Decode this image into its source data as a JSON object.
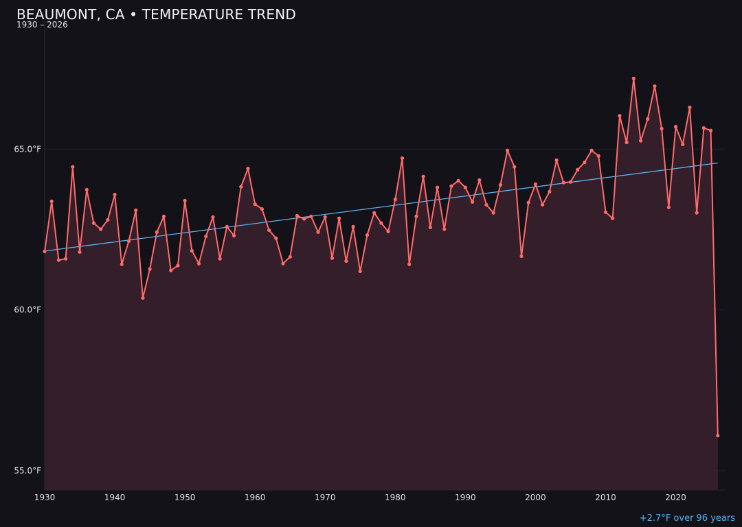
{
  "chart_data": {
    "type": "line",
    "title": "BEAUMONT, CA • TEMPERATURE TREND",
    "subtitle": "1930 – 2026",
    "annotation": "+2.7°F over 96 years",
    "xlim": [
      1930,
      2027
    ],
    "ylim": [
      54.4,
      69.0
    ],
    "x_ticks": [
      1930,
      1940,
      1950,
      1960,
      1970,
      1980,
      1990,
      2000,
      2010,
      2020
    ],
    "y_ticks": [
      55.0,
      60.0,
      65.0
    ],
    "y_tick_labels": [
      "55.0°F",
      "60.0°F",
      "65.0°F"
    ],
    "grid": "horizontal",
    "colors": {
      "background": "#131218",
      "line": "#ff6b6b",
      "area": "#36202a",
      "trend": "#5ab4ee"
    },
    "x": [
      1930,
      1931,
      1932,
      1933,
      1934,
      1935,
      1936,
      1937,
      1938,
      1939,
      1940,
      1941,
      1942,
      1943,
      1944,
      1945,
      1946,
      1947,
      1948,
      1949,
      1950,
      1951,
      1952,
      1953,
      1954,
      1955,
      1956,
      1957,
      1958,
      1959,
      1960,
      1961,
      1962,
      1963,
      1964,
      1965,
      1966,
      1967,
      1968,
      1969,
      1970,
      1971,
      1972,
      1973,
      1974,
      1975,
      1976,
      1977,
      1978,
      1979,
      1980,
      1981,
      1982,
      1983,
      1984,
      1985,
      1986,
      1987,
      1988,
      1989,
      1990,
      1991,
      1992,
      1993,
      1994,
      1995,
      1996,
      1997,
      1998,
      1999,
      2000,
      2001,
      2002,
      2003,
      2004,
      2005,
      2006,
      2007,
      2008,
      2009,
      2010,
      2011,
      2012,
      2013,
      2014,
      2015,
      2016,
      2017,
      2018,
      2019,
      2020,
      2021,
      2022,
      2023,
      2024,
      2025,
      2026
    ],
    "values": [
      61.82,
      63.38,
      61.55,
      61.59,
      64.45,
      61.8,
      63.74,
      62.7,
      62.51,
      62.8,
      63.59,
      61.42,
      62.14,
      63.1,
      60.37,
      61.27,
      62.42,
      62.91,
      61.23,
      61.38,
      63.4,
      61.84,
      61.44,
      62.29,
      62.89,
      61.59,
      62.59,
      62.31,
      63.83,
      64.4,
      63.29,
      63.14,
      62.48,
      62.23,
      61.44,
      61.65,
      62.93,
      62.83,
      62.91,
      62.42,
      62.89,
      61.61,
      62.85,
      61.52,
      62.59,
      61.2,
      62.33,
      63.02,
      62.7,
      62.44,
      63.44,
      64.72,
      61.42,
      62.91,
      64.15,
      62.57,
      63.81,
      62.51,
      63.85,
      64.02,
      63.81,
      63.36,
      64.04,
      63.27,
      63.02,
      63.89,
      64.96,
      64.45,
      61.67,
      63.34,
      63.91,
      63.27,
      63.68,
      64.66,
      63.96,
      63.98,
      64.36,
      64.59,
      64.96,
      64.79,
      63.04,
      62.85,
      66.04,
      65.21,
      67.2,
      65.26,
      65.94,
      66.96,
      65.64,
      63.19,
      65.7,
      65.15,
      66.3,
      63.02,
      65.66,
      65.58,
      56.09
    ],
    "trend": {
      "x": [
        1930,
        2026
      ],
      "y": [
        61.83,
        64.57
      ]
    }
  }
}
